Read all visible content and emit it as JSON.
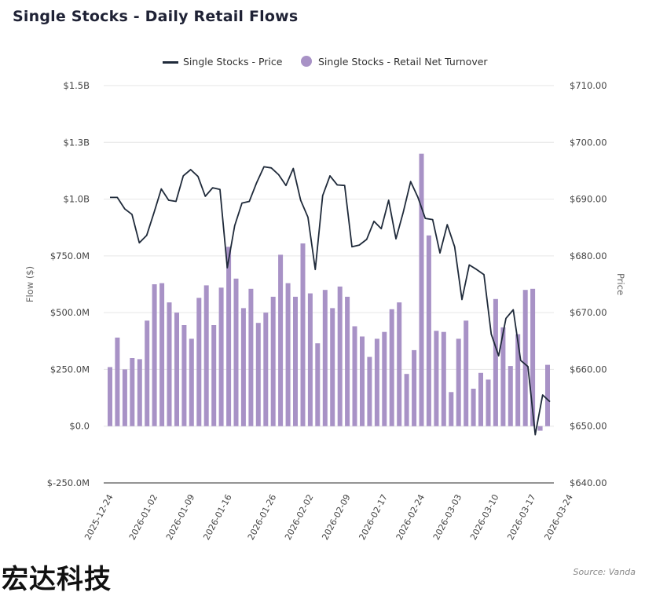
{
  "title": "Single Stocks -  Daily Retail Flows",
  "legend": {
    "price_label": "Single Stocks - Price",
    "flow_label": "Single Stocks - Retail Net Turnover"
  },
  "source": "Source: Vanda",
  "watermark": "宏达科技",
  "colors": {
    "bar": "#a892c6",
    "line": "#1f2a3a",
    "grid": "#e6e6e6",
    "axis": "#555555"
  },
  "chart_data": {
    "type": "bar",
    "ylabel": "Flow ($)",
    "y2label": "Price",
    "ylim": [
      -250000000,
      1500000000
    ],
    "y2lim": [
      640,
      710
    ],
    "yticks": [
      "$1.5B",
      "$1.3B",
      "$1.0B",
      "$750.0M",
      "$500.0M",
      "$250.0M",
      "$0.0",
      "$-250.0M"
    ],
    "y2ticks": [
      "$710.00",
      "$700.00",
      "$690.00",
      "$680.00",
      "$670.00",
      "$660.00",
      "$650.00",
      "$640.00"
    ],
    "xticks": [
      "2025-12-24",
      "2026-01-02",
      "2026-01-09",
      "2026-01-16",
      "2026-01-26",
      "2026-02-02",
      "2026-02-09",
      "2026-02-17",
      "2026-02-24",
      "2026-03-03",
      "2026-03-10",
      "2026-03-17",
      "2026-03-24"
    ],
    "xtick_index": [
      0,
      6,
      11,
      16,
      22,
      27,
      32,
      37,
      42,
      47,
      52,
      57,
      62
    ],
    "series": [
      {
        "name": "Single Stocks - Retail Net Turnover",
        "kind": "bar",
        "axis": "left",
        "values": [
          260000000,
          390000000,
          250000000,
          300000000,
          295000000,
          465000000,
          625000000,
          630000000,
          545000000,
          500000000,
          445000000,
          385000000,
          565000000,
          620000000,
          445000000,
          610000000,
          790000000,
          650000000,
          520000000,
          605000000,
          455000000,
          500000000,
          570000000,
          755000000,
          630000000,
          570000000,
          805000000,
          585000000,
          365000000,
          600000000,
          520000000,
          615000000,
          570000000,
          440000000,
          395000000,
          305000000,
          385000000,
          415000000,
          515000000,
          545000000,
          230000000,
          335000000,
          1200000000,
          840000000,
          420000000,
          415000000,
          150000000,
          385000000,
          465000000,
          165000000,
          235000000,
          205000000,
          560000000,
          435000000,
          265000000,
          405000000,
          600000000,
          605000000,
          -20000000,
          270000000
        ]
      },
      {
        "name": "Single Stocks - Price",
        "kind": "line",
        "axis": "right",
        "values": [
          690.3,
          690.3,
          688.3,
          687.3,
          682.3,
          683.6,
          687.6,
          691.8,
          689.8,
          689.6,
          694.1,
          695.2,
          694.0,
          690.5,
          692.0,
          691.7,
          677.9,
          685.3,
          689.3,
          689.6,
          692.9,
          695.7,
          695.5,
          694.3,
          692.4,
          695.4,
          689.8,
          686.8,
          677.6,
          690.6,
          694.1,
          692.5,
          692.4,
          681.6,
          681.9,
          682.9,
          686.1,
          684.8,
          689.8,
          683.0,
          687.7,
          693.1,
          690.3,
          686.6,
          686.4,
          680.5,
          685.5,
          681.6,
          672.3,
          678.4,
          677.6,
          676.7,
          666.2,
          662.4,
          669.0,
          670.5,
          661.6,
          660.5,
          648.5,
          655.5,
          654.3
        ]
      }
    ]
  }
}
